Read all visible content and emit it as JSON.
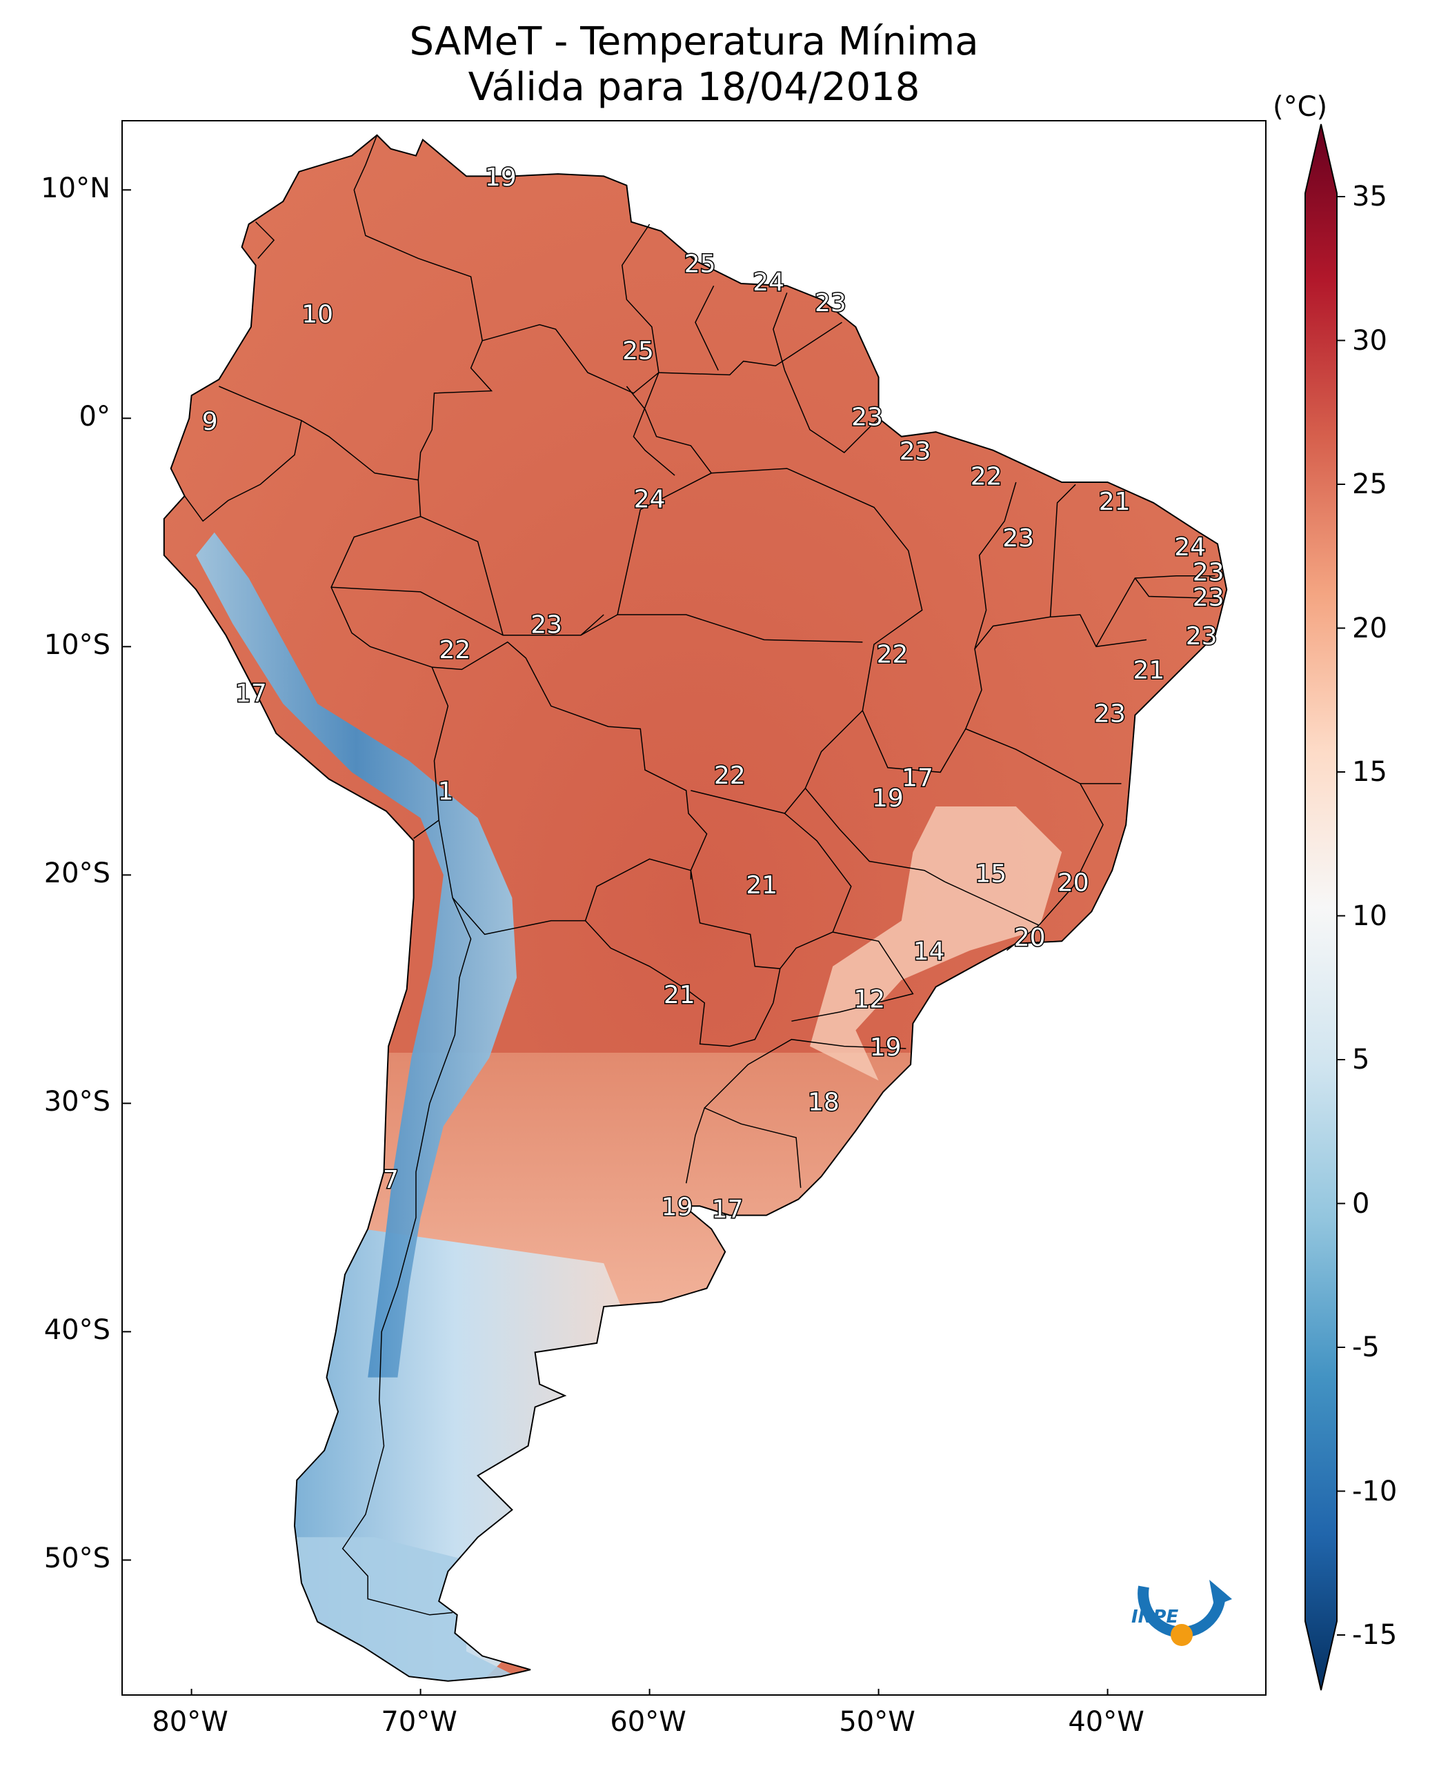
{
  "title": {
    "line1": "SAMeT - Temperatura Mínima",
    "line2": "Válida para 18/04/2018"
  },
  "colorbar": {
    "unit": "(°C)",
    "ticks": [
      "35",
      "30",
      "25",
      "20",
      "15",
      "10",
      "5",
      "0",
      "-5",
      "-10",
      "-15"
    ],
    "colors": [
      "#67001f",
      "#b2182b",
      "#d6604d",
      "#f4a582",
      "#fddbc7",
      "#f7f7f7",
      "#d1e5f0",
      "#92c5de",
      "#4393c3",
      "#2166ac",
      "#053061"
    ]
  },
  "axes": {
    "lat_labels": [
      "10°N",
      "0°",
      "10°S",
      "20°S",
      "30°S",
      "40°S",
      "50°S"
    ],
    "lon_labels": [
      "80°W",
      "70°W",
      "60°W",
      "50°W",
      "40°W"
    ]
  },
  "map_extent": {
    "lon": [
      -83,
      -33
    ],
    "lat": [
      13,
      -56
    ]
  },
  "station_labels": [
    {
      "text": "19",
      "lon": -66.5,
      "lat": 10.5
    },
    {
      "text": "25",
      "lon": -57.8,
      "lat": 6.7
    },
    {
      "text": "24",
      "lon": -54.8,
      "lat": 5.9
    },
    {
      "text": "23",
      "lon": -52.1,
      "lat": 5.0
    },
    {
      "text": "10",
      "lon": -74.5,
      "lat": 4.5
    },
    {
      "text": "25",
      "lon": -60.5,
      "lat": 2.9
    },
    {
      "text": "9",
      "lon": -79.2,
      "lat": -0.2
    },
    {
      "text": "23",
      "lon": -50.5,
      "lat": 0.0
    },
    {
      "text": "23",
      "lon": -48.4,
      "lat": -1.5
    },
    {
      "text": "22",
      "lon": -45.3,
      "lat": -2.6
    },
    {
      "text": "24",
      "lon": -60.0,
      "lat": -3.6
    },
    {
      "text": "21",
      "lon": -39.7,
      "lat": -3.7
    },
    {
      "text": "23",
      "lon": -43.9,
      "lat": -5.3
    },
    {
      "text": "24",
      "lon": -36.4,
      "lat": -5.7
    },
    {
      "text": "23",
      "lon": -35.6,
      "lat": -6.8
    },
    {
      "text": "23",
      "lon": -35.6,
      "lat": -7.9
    },
    {
      "text": "23",
      "lon": -64.5,
      "lat": -9.1
    },
    {
      "text": "23",
      "lon": -35.9,
      "lat": -9.6
    },
    {
      "text": "22",
      "lon": -68.5,
      "lat": -10.2
    },
    {
      "text": "22",
      "lon": -49.4,
      "lat": -10.4
    },
    {
      "text": "21",
      "lon": -38.2,
      "lat": -11.1
    },
    {
      "text": "17",
      "lon": -77.4,
      "lat": -12.1
    },
    {
      "text": "23",
      "lon": -39.9,
      "lat": -13.0
    },
    {
      "text": "22",
      "lon": -56.5,
      "lat": -15.7
    },
    {
      "text": "17",
      "lon": -48.3,
      "lat": -15.8
    },
    {
      "text": "19",
      "lon": -49.6,
      "lat": -16.7
    },
    {
      "text": "1",
      "lon": -68.9,
      "lat": -16.4
    },
    {
      "text": "15",
      "lon": -45.1,
      "lat": -20.0
    },
    {
      "text": "20",
      "lon": -41.5,
      "lat": -20.4
    },
    {
      "text": "21",
      "lon": -55.1,
      "lat": -20.5
    },
    {
      "text": "20",
      "lon": -43.4,
      "lat": -22.8
    },
    {
      "text": "14",
      "lon": -47.8,
      "lat": -23.4
    },
    {
      "text": "12",
      "lon": -50.4,
      "lat": -25.5
    },
    {
      "text": "21",
      "lon": -58.7,
      "lat": -25.3
    },
    {
      "text": "19",
      "lon": -49.7,
      "lat": -27.6
    },
    {
      "text": "18",
      "lon": -52.4,
      "lat": -30.0
    },
    {
      "text": "7",
      "lon": -71.3,
      "lat": -33.4
    },
    {
      "text": "19",
      "lon": -58.8,
      "lat": -34.6
    },
    {
      "text": "17",
      "lon": -56.6,
      "lat": -34.7
    }
  ],
  "logo": {
    "text": "INPE"
  }
}
